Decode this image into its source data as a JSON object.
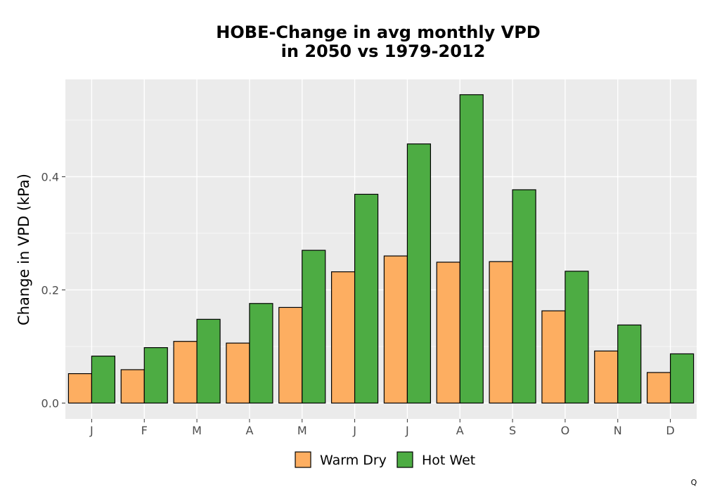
{
  "chart_data": {
    "type": "bar",
    "title_lines": [
      "HOBE-Change in avg monthly VPD",
      "in 2050 vs 1979-2012"
    ],
    "xlabel": "",
    "ylabel": "Change in VPD (kPa)",
    "categories": [
      "J",
      "F",
      "M",
      "A",
      "M",
      "J",
      "J",
      "A",
      "S",
      "O",
      "N",
      "D"
    ],
    "series": [
      {
        "name": "Warm Dry",
        "color": "#FDAE61",
        "values": [
          0.052,
          0.059,
          0.109,
          0.106,
          0.169,
          0.232,
          0.26,
          0.249,
          0.25,
          0.163,
          0.092,
          0.054
        ]
      },
      {
        "name": "Hot Wet",
        "color": "#4DAC43",
        "values": [
          0.083,
          0.098,
          0.148,
          0.176,
          0.27,
          0.369,
          0.458,
          0.545,
          0.377,
          0.233,
          0.138,
          0.087
        ]
      }
    ],
    "ylim": [
      -0.028,
      0.572
    ],
    "yticks": [
      0.0,
      0.2,
      0.4
    ],
    "ytick_labels": [
      "0.0",
      "0.2",
      "0.4"
    ],
    "grid": true,
    "panel_background": "#EBEBEB",
    "legend_position": "bottom"
  },
  "corner_mark": "Q"
}
